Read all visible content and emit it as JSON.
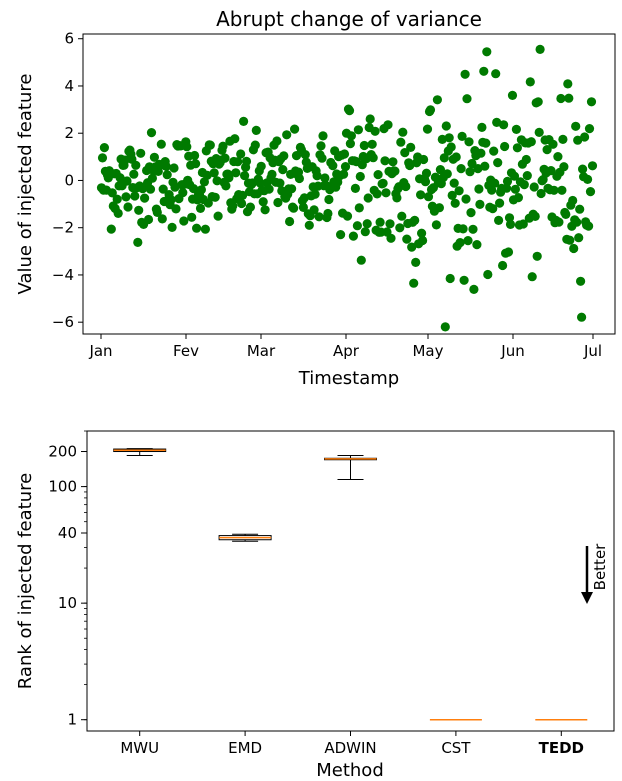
{
  "chart_data": [
    {
      "type": "scatter",
      "title": "Abrupt change of variance",
      "xlabel": "Timestamp",
      "ylabel": "Value of injected feature",
      "x_tick_labels": [
        "Jan",
        "Fev",
        "Mar",
        "Apr",
        "May",
        "Jun",
        "Jul"
      ],
      "y_ticks": [
        -6,
        -4,
        -2,
        0,
        2,
        4,
        6
      ],
      "ylim": [
        -6.5,
        6.2
      ],
      "point_color": "#007a00",
      "grid": false,
      "segments": [
        {
          "from": "Jan",
          "to": "Apr",
          "points": 250,
          "std": 1.0
        },
        {
          "from": "Apr",
          "to": "Jul",
          "points": 250,
          "std": 2.0
        }
      ]
    },
    {
      "type": "box",
      "xlabel": "Method",
      "ylabel": "Rank of injected feature",
      "y_scale": "log",
      "ylim": [
        0.8,
        300
      ],
      "y_ticks": [
        1,
        10,
        40,
        100,
        200
      ],
      "categories": [
        "MWU",
        "EMD",
        "ADWIN",
        "CST",
        "TEDD"
      ],
      "bold_category": "TEDD",
      "median_color": "#ff7f0e",
      "boxes": [
        {
          "label": "MWU",
          "whislo": 185,
          "q1": 200,
          "med": 205,
          "q3": 210,
          "whishi": 212
        },
        {
          "label": "EMD",
          "whislo": 34,
          "q1": 35,
          "med": 36.5,
          "q3": 38,
          "whishi": 39
        },
        {
          "label": "ADWIN",
          "whislo": 115,
          "q1": 170,
          "med": 173,
          "q3": 175,
          "whishi": 185
        },
        {
          "label": "CST",
          "whislo": 1,
          "q1": 1,
          "med": 1,
          "q3": 1,
          "whishi": 1
        },
        {
          "label": "TEDD",
          "whislo": 1,
          "q1": 1,
          "med": 1,
          "q3": 1,
          "whishi": 1
        }
      ],
      "annotation": {
        "text": "Better",
        "arrow": "down"
      }
    }
  ]
}
